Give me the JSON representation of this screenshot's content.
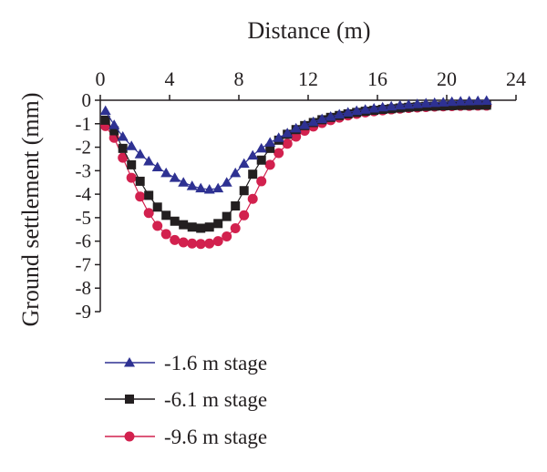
{
  "chart_data": {
    "type": "line",
    "title": "",
    "xlabel": "Distance (m)",
    "ylabel": "Ground settlement (mm)",
    "xlim": [
      0,
      24
    ],
    "ylim": [
      -9,
      0
    ],
    "x_ticks": [
      0,
      4,
      8,
      12,
      16,
      20,
      24
    ],
    "y_ticks": [
      0,
      -1,
      -2,
      -3,
      -4,
      -5,
      -6,
      -7,
      -8,
      -9
    ],
    "x_axis_position": "top",
    "grid": false,
    "legend_position": "bottom-left",
    "series": [
      {
        "name": "-1.6 m stage",
        "marker": "triangle",
        "color": "#2e3192",
        "x": [
          0.3,
          0.8,
          1.3,
          1.8,
          2.3,
          2.8,
          3.3,
          3.8,
          4.3,
          4.8,
          5.3,
          5.8,
          6.3,
          6.8,
          7.3,
          7.8,
          8.3,
          8.8,
          9.3,
          9.8,
          10.3,
          10.8,
          11.3,
          11.8,
          12.3,
          12.8,
          13.3,
          13.8,
          14.3,
          14.8,
          15.3,
          15.8,
          16.3,
          16.8,
          17.3,
          17.8,
          18.3,
          18.8,
          19.3,
          19.8,
          20.3,
          20.8,
          21.3,
          21.8,
          22.3
        ],
        "y": [
          -0.45,
          -1.05,
          -1.55,
          -1.95,
          -2.3,
          -2.6,
          -2.85,
          -3.1,
          -3.3,
          -3.5,
          -3.65,
          -3.75,
          -3.8,
          -3.75,
          -3.5,
          -3.1,
          -2.7,
          -2.35,
          -2.05,
          -1.8,
          -1.6,
          -1.4,
          -1.2,
          -1.05,
          -0.92,
          -0.8,
          -0.7,
          -0.6,
          -0.52,
          -0.45,
          -0.4,
          -0.35,
          -0.3,
          -0.26,
          -0.22,
          -0.19,
          -0.16,
          -0.13,
          -0.11,
          -0.09,
          -0.07,
          -0.05,
          -0.04,
          -0.03,
          -0.02
        ]
      },
      {
        "name": "-6.1 m stage",
        "marker": "square",
        "color": "#231f20",
        "x": [
          0.3,
          0.8,
          1.3,
          1.8,
          2.3,
          2.8,
          3.3,
          3.8,
          4.3,
          4.8,
          5.3,
          5.8,
          6.3,
          6.8,
          7.3,
          7.8,
          8.3,
          8.8,
          9.3,
          9.8,
          10.3,
          10.8,
          11.3,
          11.8,
          12.3,
          12.8,
          13.3,
          13.8,
          14.3,
          14.8,
          15.3,
          15.8,
          16.3,
          16.8,
          17.3,
          17.8,
          18.3,
          18.8,
          19.3,
          19.8,
          20.3,
          20.8,
          21.3,
          21.8,
          22.3
        ],
        "y": [
          -0.85,
          -1.3,
          -2.05,
          -2.75,
          -3.45,
          -4.05,
          -4.55,
          -4.9,
          -5.15,
          -5.3,
          -5.4,
          -5.45,
          -5.4,
          -5.25,
          -4.95,
          -4.5,
          -3.85,
          -3.15,
          -2.55,
          -2.05,
          -1.7,
          -1.45,
          -1.25,
          -1.08,
          -0.95,
          -0.83,
          -0.73,
          -0.65,
          -0.58,
          -0.52,
          -0.47,
          -0.43,
          -0.39,
          -0.36,
          -0.33,
          -0.3,
          -0.28,
          -0.26,
          -0.25,
          -0.24,
          -0.23,
          -0.22,
          -0.22,
          -0.21,
          -0.21
        ]
      },
      {
        "name": "-9.6 m stage",
        "marker": "circle",
        "color": "#d2214e",
        "x": [
          0.3,
          0.8,
          1.3,
          1.8,
          2.3,
          2.8,
          3.3,
          3.8,
          4.3,
          4.8,
          5.3,
          5.8,
          6.3,
          6.8,
          7.3,
          7.8,
          8.3,
          8.8,
          9.3,
          9.8,
          10.3,
          10.8,
          11.3,
          11.8,
          12.3,
          12.8,
          13.3,
          13.8,
          14.3,
          14.8,
          15.3,
          15.8,
          16.3,
          16.8,
          17.3,
          17.8,
          18.3,
          18.8,
          19.3,
          19.8,
          20.3,
          20.8,
          21.3,
          21.8,
          22.3
        ],
        "y": [
          -1.1,
          -1.6,
          -2.45,
          -3.3,
          -4.1,
          -4.8,
          -5.35,
          -5.7,
          -5.95,
          -6.05,
          -6.1,
          -6.12,
          -6.1,
          -6.0,
          -5.8,
          -5.45,
          -4.9,
          -4.2,
          -3.45,
          -2.75,
          -2.25,
          -1.85,
          -1.55,
          -1.3,
          -1.12,
          -0.97,
          -0.85,
          -0.74,
          -0.65,
          -0.58,
          -0.52,
          -0.47,
          -0.43,
          -0.39,
          -0.36,
          -0.33,
          -0.31,
          -0.29,
          -0.27,
          -0.26,
          -0.25,
          -0.24,
          -0.24,
          -0.23,
          -0.23
        ]
      }
    ]
  }
}
